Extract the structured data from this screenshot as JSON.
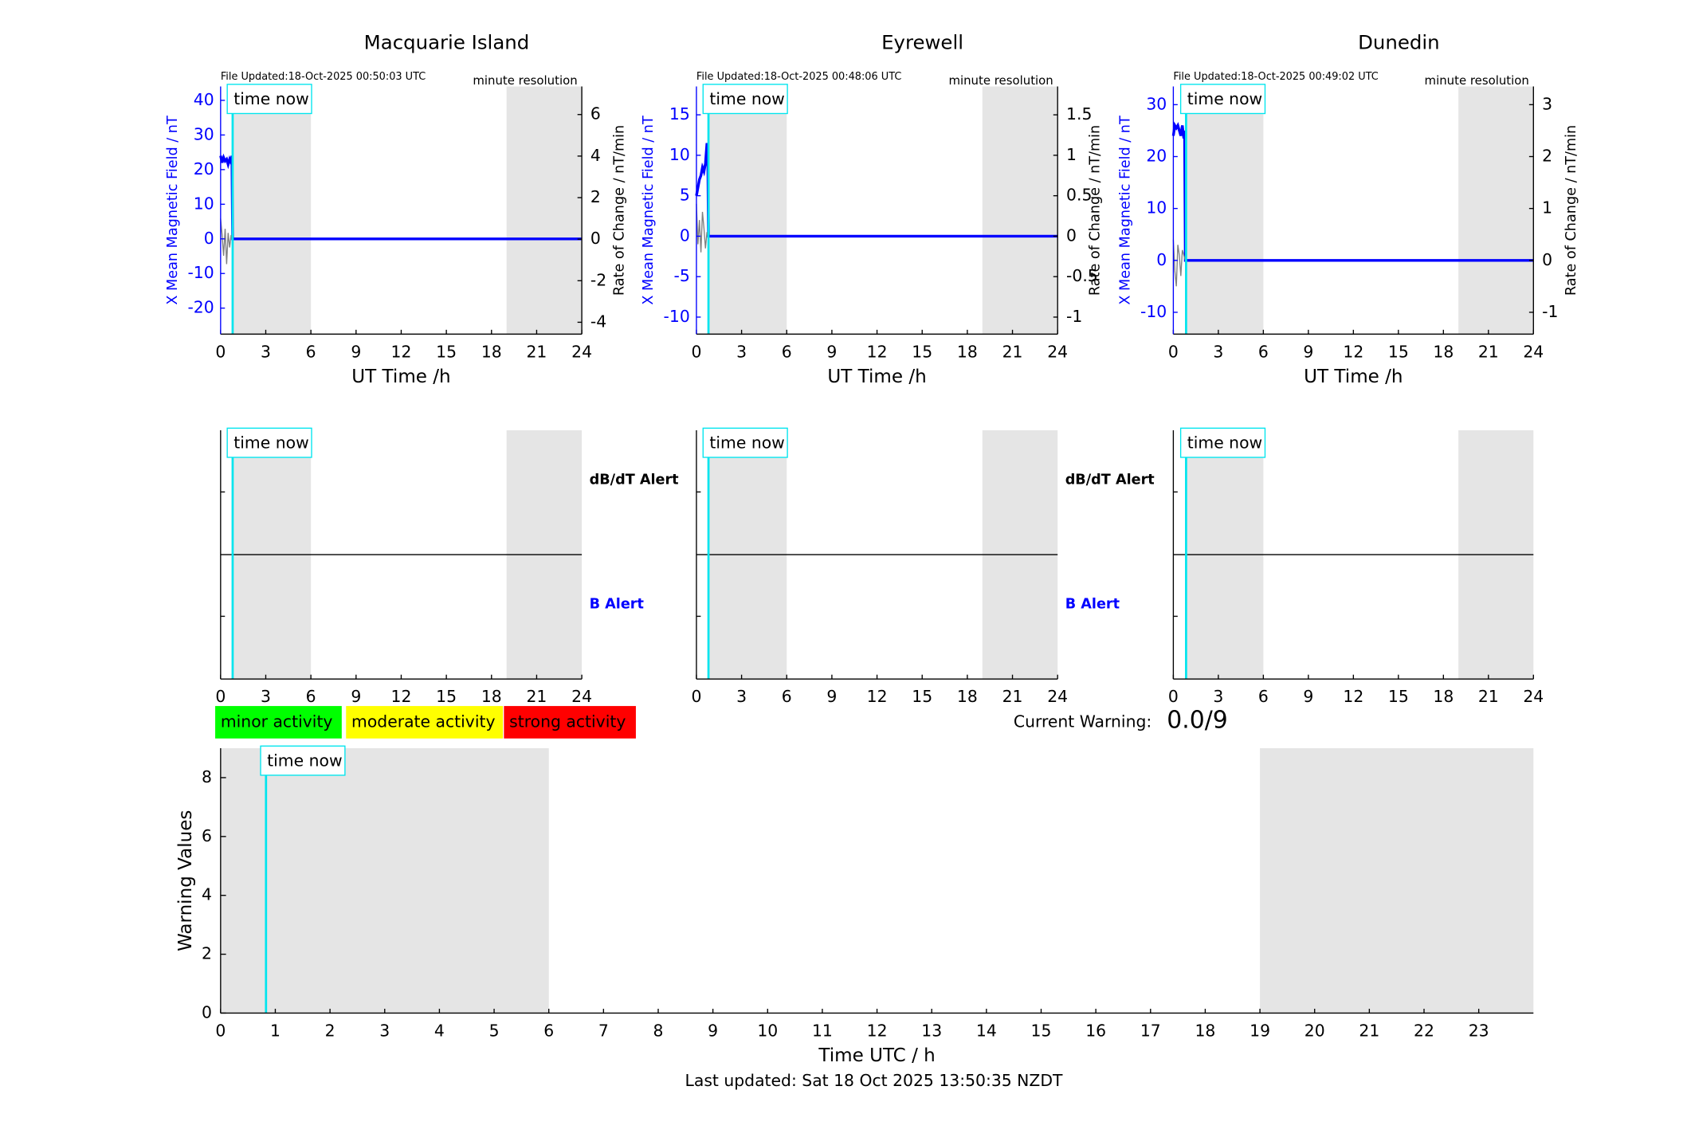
{
  "chart_data": [
    {
      "type": "line",
      "title": "Macquarie Island",
      "subtitle": "File Updated:18-Oct-2025 00:50:03 UTC",
      "annotation": "minute resolution",
      "marker_label": "time now",
      "marker_x": 0.8,
      "shaded": [
        [
          0.8,
          6
        ],
        [
          19,
          24
        ]
      ],
      "xlabel": "UT Time /h",
      "ylabel": "X Mean Magnetic Field / nT",
      "y2label": "Rate of Change / nT/min",
      "xlim": [
        0,
        24
      ],
      "xticks": [
        0,
        3,
        6,
        9,
        12,
        15,
        18,
        21,
        24
      ],
      "ylim": [
        -27.5,
        44
      ],
      "yticks": [
        -20,
        -10,
        0,
        10,
        20,
        30,
        40
      ],
      "y2lim": [
        -4.57,
        7.35
      ],
      "y2ticks": [
        -4,
        -2,
        0,
        2,
        4,
        6
      ],
      "series": [
        {
          "color": "#0000ff",
          "x": [
            0,
            0.1,
            0.2,
            0.3,
            0.4,
            0.5,
            0.6,
            0.7,
            0.75,
            0.8,
            24
          ],
          "values": [
            24,
            22,
            23.5,
            22.5,
            23,
            21.5,
            23,
            22,
            24,
            0,
            0
          ]
        },
        {
          "color": "#808080",
          "axis": "y2",
          "x": [
            0,
            0.1,
            0.2,
            0.3,
            0.4,
            0.5,
            0.6,
            0.7,
            0.8
          ],
          "values": [
            1,
            0.2,
            -0.8,
            0.5,
            -1.2,
            0.3,
            -0.4,
            0.2,
            0
          ]
        }
      ]
    },
    {
      "type": "line",
      "title": "Eyrewell",
      "subtitle": "File Updated:18-Oct-2025 00:48:06 UTC",
      "annotation": "minute resolution",
      "marker_label": "time now",
      "marker_x": 0.8,
      "shaded": [
        [
          0.8,
          6
        ],
        [
          19,
          24
        ]
      ],
      "xlabel": "UT Time /h",
      "ylabel": "X Mean Magnetic Field / nT",
      "y2label": "Rate of Change / nT/min",
      "xlim": [
        0,
        24
      ],
      "xticks": [
        0,
        3,
        6,
        9,
        12,
        15,
        18,
        21,
        24
      ],
      "ylim": [
        -12.1,
        18.5
      ],
      "yticks": [
        -10,
        -5,
        0,
        5,
        10,
        15
      ],
      "y2lim": [
        -1.21,
        1.85
      ],
      "y2ticks": [
        -1,
        -0.5,
        0,
        0.5,
        1,
        1.5
      ],
      "series": [
        {
          "color": "#0000ff",
          "x": [
            0,
            0.1,
            0.2,
            0.3,
            0.4,
            0.5,
            0.6,
            0.7,
            0.75,
            0.8,
            24
          ],
          "values": [
            5,
            6,
            7,
            7.5,
            8.5,
            8,
            9,
            11.5,
            11,
            0,
            0
          ]
        },
        {
          "color": "#808080",
          "axis": "y2",
          "x": [
            0,
            0.1,
            0.2,
            0.3,
            0.4,
            0.5,
            0.6,
            0.7,
            0.8
          ],
          "values": [
            0.4,
            -0.1,
            0.2,
            -0.2,
            0.3,
            0.1,
            -0.15,
            0.05,
            0
          ]
        }
      ]
    },
    {
      "type": "line",
      "title": "Dunedin",
      "subtitle": "File Updated:18-Oct-2025 00:49:02 UTC",
      "annotation": "minute resolution",
      "marker_label": "time now",
      "marker_x": 0.85,
      "shaded": [
        [
          0.85,
          6
        ],
        [
          19,
          24
        ]
      ],
      "xlabel": "UT Time /h",
      "ylabel": "X Mean Magnetic Field / nT",
      "y2label": "Rate of Change / nT/min",
      "xlim": [
        0,
        24
      ],
      "xticks": [
        0,
        3,
        6,
        9,
        12,
        15,
        18,
        21,
        24
      ],
      "ylim": [
        -14.2,
        33.5
      ],
      "yticks": [
        -10,
        0,
        10,
        20,
        30
      ],
      "y2lim": [
        -1.42,
        3.35
      ],
      "y2ticks": [
        -1,
        0,
        1,
        2,
        3
      ],
      "series": [
        {
          "color": "#0000ff",
          "x": [
            0,
            0.1,
            0.2,
            0.3,
            0.4,
            0.5,
            0.6,
            0.7,
            0.75,
            0.8,
            24
          ],
          "values": [
            24,
            26,
            25.5,
            26,
            25,
            24,
            26,
            23.5,
            25,
            0,
            0
          ]
        },
        {
          "color": "#808080",
          "axis": "y2",
          "x": [
            0,
            0.1,
            0.2,
            0.3,
            0.4,
            0.5,
            0.6,
            0.7,
            0.8
          ],
          "values": [
            0.4,
            -0.2,
            -0.5,
            0.3,
            0.1,
            -0.3,
            0.2,
            0.1,
            0
          ]
        }
      ]
    },
    {
      "type": "alert",
      "marker_label": "time now",
      "marker_x": 0.8,
      "shaded": [
        [
          0.8,
          6
        ],
        [
          19,
          24
        ]
      ],
      "upper_label": "dB/dT Alert",
      "lower_label": "B Alert",
      "xlim": [
        0,
        24
      ],
      "xticks": [
        0,
        3,
        6,
        9,
        12,
        15,
        18,
        21,
        24
      ]
    },
    {
      "type": "alert",
      "marker_label": "time now",
      "marker_x": 0.8,
      "shaded": [
        [
          0.8,
          6
        ],
        [
          19,
          24
        ]
      ],
      "upper_label": "dB/dT Alert",
      "lower_label": "B Alert",
      "xlim": [
        0,
        24
      ],
      "xticks": [
        0,
        3,
        6,
        9,
        12,
        15,
        18,
        21,
        24
      ]
    },
    {
      "type": "alert",
      "marker_label": "time now",
      "marker_x": 0.85,
      "shaded": [
        [
          0.85,
          6
        ],
        [
          19,
          24
        ]
      ],
      "xlim": [
        0,
        24
      ],
      "xticks": [
        0,
        3,
        6,
        9,
        12,
        15,
        18,
        21,
        24
      ]
    },
    {
      "type": "warning",
      "marker_label": "time now",
      "marker_x": 0.83,
      "shaded": [
        [
          0,
          6
        ],
        [
          19,
          24
        ]
      ],
      "xlabel": "Time UTC / h",
      "ylabel": "Warning Values",
      "xlim": [
        0,
        24
      ],
      "xticks": [
        0,
        1,
        2,
        3,
        4,
        5,
        6,
        7,
        8,
        9,
        10,
        11,
        12,
        13,
        14,
        15,
        16,
        17,
        18,
        19,
        20,
        21,
        22,
        23
      ],
      "ylim": [
        0,
        9
      ],
      "yticks": [
        0,
        2,
        4,
        6,
        8
      ],
      "activity_levels": [
        {
          "label": "minor activity",
          "color": "#00ff00"
        },
        {
          "label": "moderate activity",
          "color": "#ffff00"
        },
        {
          "label": "strong activity",
          "color": "#ff0000"
        }
      ],
      "current_warning_label": "Current Warning:",
      "current_warning": "0.0/9",
      "footer": "Last updated: Sat 18 Oct 2025 13:50:35 NZDT"
    }
  ]
}
